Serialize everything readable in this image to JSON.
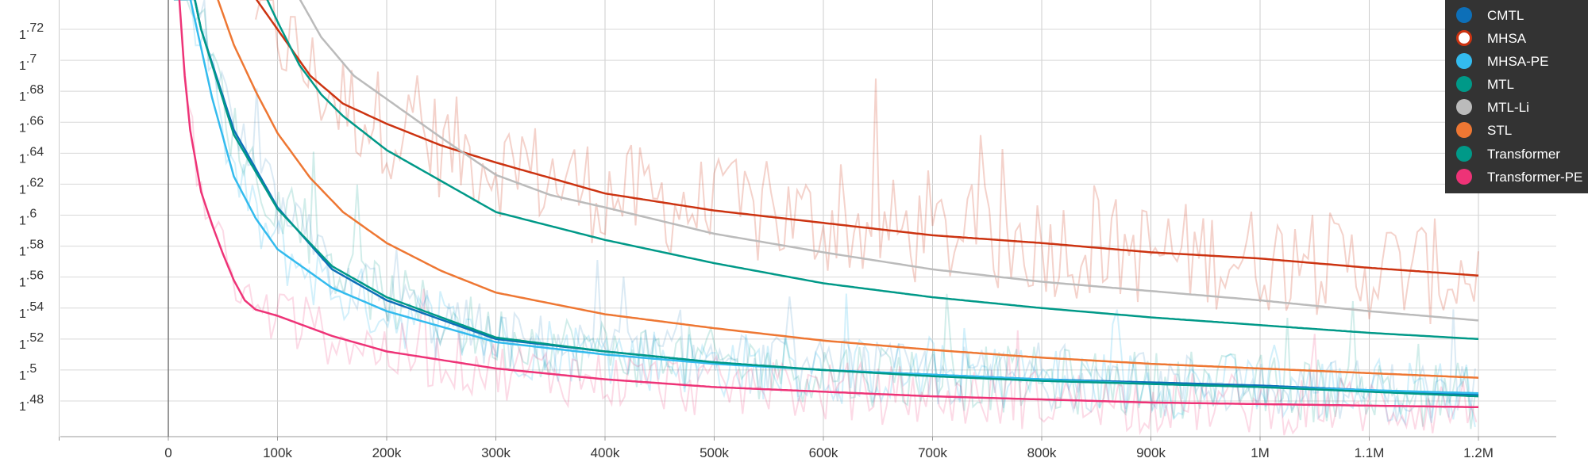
{
  "chart_data": {
    "type": "line",
    "x_tick_labels": [
      "0",
      "100k",
      "200k",
      "300k",
      "400k",
      "500k",
      "600k",
      "700k",
      "800k",
      "900k",
      "1M",
      "1.1M",
      "1.2M"
    ],
    "x_ticks": [
      0,
      100000,
      200000,
      300000,
      400000,
      500000,
      600000,
      700000,
      800000,
      900000,
      1000000,
      1100000,
      1200000
    ],
    "y_ticks": [
      1.48,
      1.5,
      1.52,
      1.54,
      1.56,
      1.58,
      1.6,
      1.62,
      1.64,
      1.66,
      1.68,
      1.7,
      1.72
    ],
    "y_tick_labels": [
      {
        "base": "1",
        "sup": ".48"
      },
      {
        "base": "1",
        "sup": ".5"
      },
      {
        "base": "1",
        "sup": ".52"
      },
      {
        "base": "1",
        "sup": ".54"
      },
      {
        "base": "1",
        "sup": ".56"
      },
      {
        "base": "1",
        "sup": ".58"
      },
      {
        "base": "1",
        "sup": ".6"
      },
      {
        "base": "1",
        "sup": ".62"
      },
      {
        "base": "1",
        "sup": ".64"
      },
      {
        "base": "1",
        "sup": ".66"
      },
      {
        "base": "1",
        "sup": ".68"
      },
      {
        "base": "1",
        "sup": ".7"
      },
      {
        "base": "1",
        "sup": ".72"
      }
    ],
    "xlim": [
      -100000,
      1200000
    ],
    "ylim": [
      1.463,
      1.737
    ],
    "grid": true,
    "legend_position": "top-right",
    "series": [
      {
        "name": "CMTL",
        "color": "#0d6fb8",
        "x": [
          0,
          30000,
          60000,
          100000,
          150000,
          200000,
          300000,
          400000,
          500000,
          600000,
          700000,
          800000,
          900000,
          1000000,
          1100000,
          1200000
        ],
        "values": [
          1.82,
          1.72,
          1.655,
          1.605,
          1.565,
          1.545,
          1.52,
          1.512,
          1.505,
          1.5,
          1.497,
          1.494,
          1.492,
          1.49,
          1.487,
          1.484
        ]
      },
      {
        "name": "MHSA",
        "color": "#cc3311",
        "x": [
          80000,
          100000,
          130000,
          160000,
          200000,
          250000,
          300000,
          400000,
          500000,
          600000,
          700000,
          800000,
          900000,
          1000000,
          1100000,
          1200000
        ],
        "values": [
          1.74,
          1.72,
          1.69,
          1.672,
          1.659,
          1.645,
          1.634,
          1.614,
          1.603,
          1.595,
          1.587,
          1.582,
          1.576,
          1.572,
          1.566,
          1.561
        ]
      },
      {
        "name": "MHSA-PE",
        "color": "#33bbee",
        "x": [
          0,
          20000,
          40000,
          60000,
          80000,
          100000,
          150000,
          200000,
          300000,
          400000,
          500000,
          600000,
          700000,
          800000,
          900000,
          1000000,
          1100000,
          1200000
        ],
        "values": [
          1.82,
          1.74,
          1.676,
          1.625,
          1.598,
          1.578,
          1.553,
          1.538,
          1.518,
          1.51,
          1.504,
          1.5,
          1.497,
          1.494,
          1.491,
          1.489,
          1.487,
          1.485
        ]
      },
      {
        "name": "MTL",
        "color": "#009988",
        "x": [
          0,
          30000,
          60000,
          100000,
          150000,
          200000,
          300000,
          400000,
          500000,
          600000,
          700000,
          800000,
          900000,
          1000000,
          1100000,
          1200000
        ],
        "values": [
          1.82,
          1.72,
          1.652,
          1.604,
          1.567,
          1.547,
          1.521,
          1.512,
          1.505,
          1.5,
          1.496,
          1.493,
          1.491,
          1.489,
          1.486,
          1.483
        ]
      },
      {
        "name": "MTL-Li",
        "color": "#bbbbbb",
        "x": [
          120000,
          140000,
          170000,
          200000,
          250000,
          300000,
          350000,
          400000,
          500000,
          600000,
          700000,
          800000,
          900000,
          1000000,
          1100000,
          1200000
        ],
        "values": [
          1.74,
          1.715,
          1.69,
          1.675,
          1.65,
          1.626,
          1.613,
          1.605,
          1.588,
          1.576,
          1.565,
          1.557,
          1.551,
          1.545,
          1.538,
          1.532
        ]
      },
      {
        "name": "STL",
        "color": "#ee7733",
        "x": [
          40000,
          60000,
          80000,
          100000,
          130000,
          160000,
          200000,
          250000,
          300000,
          400000,
          500000,
          600000,
          700000,
          800000,
          900000,
          1000000,
          1100000,
          1200000
        ],
        "values": [
          1.75,
          1.71,
          1.68,
          1.653,
          1.624,
          1.602,
          1.582,
          1.564,
          1.55,
          1.536,
          1.527,
          1.519,
          1.513,
          1.508,
          1.504,
          1.501,
          1.498,
          1.495
        ]
      },
      {
        "name": "Transformer",
        "color": "#009988",
        "x": [
          90000,
          100000,
          120000,
          140000,
          160000,
          200000,
          250000,
          300000,
          400000,
          500000,
          600000,
          700000,
          800000,
          900000,
          1000000,
          1100000,
          1200000
        ],
        "values": [
          1.74,
          1.725,
          1.697,
          1.678,
          1.664,
          1.642,
          1.622,
          1.602,
          1.584,
          1.569,
          1.556,
          1.547,
          1.54,
          1.534,
          1.529,
          1.524,
          1.52
        ]
      },
      {
        "name": "Transformer-PE",
        "color": "#ee3377",
        "x": [
          10000,
          15000,
          20000,
          30000,
          40000,
          50000,
          60000,
          70000,
          80000,
          100000,
          150000,
          200000,
          300000,
          400000,
          500000,
          600000,
          700000,
          800000,
          900000,
          1000000,
          1100000,
          1200000
        ],
        "values": [
          1.74,
          1.69,
          1.655,
          1.615,
          1.594,
          1.575,
          1.558,
          1.545,
          1.539,
          1.535,
          1.522,
          1.512,
          1.501,
          1.494,
          1.489,
          1.486,
          1.483,
          1.481,
          1.479,
          1.478,
          1.477,
          1.476
        ]
      }
    ]
  },
  "legend": {
    "items": [
      {
        "label": "CMTL",
        "color": "#0d6fb8",
        "style": "filled"
      },
      {
        "label": "MHSA",
        "color": "#cc3311",
        "style": "ring"
      },
      {
        "label": "MHSA-PE",
        "color": "#33bbee",
        "style": "filled"
      },
      {
        "label": "MTL",
        "color": "#009988",
        "style": "filled"
      },
      {
        "label": "MTL-Li",
        "color": "#bbbbbb",
        "style": "filled"
      },
      {
        "label": "STL",
        "color": "#ee7733",
        "style": "filled"
      },
      {
        "label": "Transformer",
        "color": "#009988",
        "style": "filled"
      },
      {
        "label": "Transformer-PE",
        "color": "#ee3377",
        "style": "filled"
      }
    ]
  }
}
